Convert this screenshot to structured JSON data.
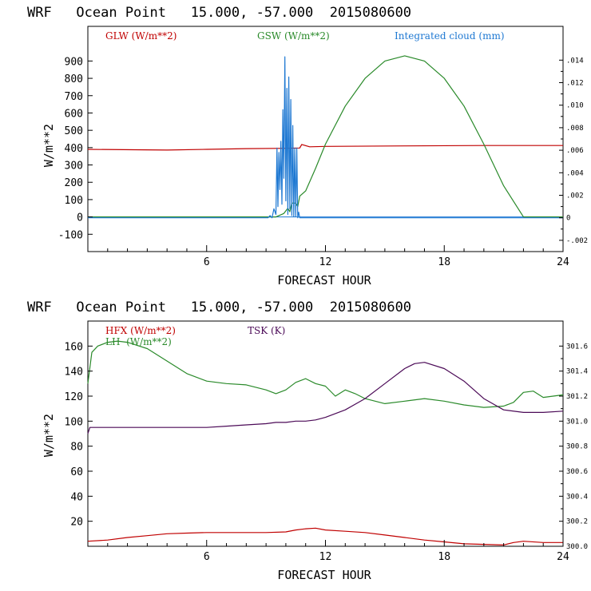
{
  "chart_data": [
    {
      "type": "line",
      "title": "WRF   Ocean Point   15.000, -57.000  2015080600",
      "xlabel": "FORECAST HOUR",
      "ylabel": "W/m**2",
      "xlim": [
        0,
        24
      ],
      "ylim": [
        -200,
        1100
      ],
      "xticks": [
        "6",
        "12",
        "18",
        "24"
      ],
      "yticks": [
        "-100",
        "0",
        "100",
        "200",
        "300",
        "400",
        "500",
        "600",
        "700",
        "800",
        "900"
      ],
      "right_ticks": [
        "-.002",
        "0",
        ".002",
        ".004",
        ".006",
        ".008",
        ".010",
        ".012",
        ".014"
      ],
      "right_ylim": [
        -0.003,
        0.017
      ],
      "legend": [
        "GLW (W/m**2)",
        "GSW (W/m**2)",
        "Integrated cloud (mm)"
      ],
      "series": [
        {
          "name": "GLW (W/m**2)",
          "color": "#c00000",
          "axis": "left",
          "x": [
            0,
            4,
            6,
            8,
            10,
            10.7,
            10.8,
            11.2,
            12,
            16,
            20,
            24
          ],
          "y": [
            390,
            386,
            390,
            394,
            396,
            398,
            418,
            405,
            407,
            410,
            412,
            412
          ]
        },
        {
          "name": "GSW (W/m**2)",
          "color": "#2a8a2a",
          "axis": "left",
          "x": [
            0,
            9.5,
            9.9,
            10.1,
            10.2,
            10.3,
            10.5,
            10.6,
            10.7,
            11,
            11.5,
            12,
            13,
            14,
            15,
            16,
            17,
            18,
            19,
            20,
            21,
            22,
            24
          ],
          "y": [
            0,
            0,
            20,
            50,
            30,
            80,
            80,
            60,
            120,
            150,
            280,
            420,
            640,
            800,
            900,
            930,
            900,
            800,
            640,
            420,
            180,
            0,
            0
          ]
        },
        {
          "name": "Integrated cloud (mm)",
          "color": "#1e78d2",
          "axis": "right",
          "x": [
            0,
            9.1,
            9.2,
            9.3,
            9.4,
            9.5,
            9.55,
            9.6,
            9.65,
            9.7,
            9.75,
            9.8,
            9.85,
            9.9,
            9.95,
            10.0,
            10.05,
            10.1,
            10.15,
            10.2,
            10.25,
            10.3,
            10.35,
            10.4,
            10.45,
            10.5,
            10.55,
            10.6,
            10.65,
            10.7,
            24
          ],
          "y": [
            0,
            0,
            0.0002,
            0,
            0.0008,
            0.0003,
            0.0062,
            0.001,
            0.0058,
            0.0025,
            0.0068,
            0.0012,
            0.0096,
            0.0035,
            0.0143,
            0.0015,
            0.0115,
            0.0003,
            0.0125,
            0.0008,
            0.0105,
            0.0002,
            0.0082,
            0.0001,
            0.0062,
            0.0001,
            0.0062,
            0,
            0.0005,
            0,
            0
          ]
        }
      ]
    },
    {
      "type": "line",
      "title": "WRF   Ocean Point   15.000, -57.000  2015080600",
      "xlabel": "FORECAST HOUR",
      "ylabel": "W/m**2",
      "xlim": [
        0,
        24
      ],
      "ylim": [
        0,
        180
      ],
      "xticks": [
        "6",
        "12",
        "18",
        "24"
      ],
      "yticks": [
        "20",
        "40",
        "60",
        "80",
        "100",
        "120",
        "140",
        "160"
      ],
      "right_ticks": [
        "300.0",
        "300.2",
        "300.4",
        "300.6",
        "300.8",
        "301.0",
        "301.2",
        "301.4",
        "301.6"
      ],
      "right_ylim": [
        300.0,
        301.8
      ],
      "legend": [
        "HFX (W/m**2)",
        "LH  (W/m**2)",
        "TSK (K)"
      ],
      "series": [
        {
          "name": "HFX (W/m**2)",
          "color": "#c00000",
          "axis": "left",
          "x": [
            0,
            1,
            2,
            3,
            4,
            5,
            6,
            7,
            8,
            9,
            10,
            10.5,
            11,
            11.5,
            12,
            13,
            14,
            15,
            16,
            17,
            18,
            19,
            20,
            21,
            21.5,
            22,
            23,
            24
          ],
          "y": [
            4,
            5,
            7,
            8.5,
            10,
            10.5,
            11,
            11,
            11,
            11,
            11.5,
            13,
            14,
            14.5,
            13,
            12,
            11,
            9,
            7,
            5,
            3.5,
            2,
            1.5,
            1,
            3,
            4,
            3,
            3
          ]
        },
        {
          "name": "LH  (W/m**2)",
          "color": "#2a8a2a",
          "axis": "left",
          "x": [
            0,
            0.2,
            0.5,
            1,
            1.5,
            2,
            3,
            4,
            5,
            6,
            7,
            8,
            9,
            9.5,
            10,
            10.5,
            11,
            11.5,
            12,
            12.5,
            13,
            13.5,
            14,
            15,
            16,
            17,
            18,
            19,
            20,
            21,
            21.5,
            22,
            22.5,
            23,
            23.5,
            24
          ],
          "y": [
            130,
            155,
            160,
            163,
            164,
            163,
            158,
            148,
            138,
            132,
            130,
            129,
            125,
            122,
            125,
            131,
            134,
            130,
            128,
            120,
            125,
            122,
            118,
            114,
            116,
            118,
            116,
            113,
            111,
            112,
            115,
            123,
            124,
            119,
            120,
            121
          ]
        },
        {
          "name": "TSK (K)",
          "color": "#4b0a57",
          "axis": "right",
          "x": [
            0,
            0.1,
            1,
            2,
            3,
            4,
            5,
            6,
            7,
            8,
            9,
            9.5,
            10,
            10.5,
            11,
            11.5,
            12,
            13,
            14,
            15,
            16,
            16.5,
            17,
            18,
            19,
            20,
            21,
            22,
            23,
            24
          ],
          "y": [
            300.9,
            300.95,
            300.95,
            300.95,
            300.95,
            300.95,
            300.95,
            300.95,
            300.96,
            300.97,
            300.98,
            300.99,
            300.99,
            301.0,
            301.0,
            301.01,
            301.03,
            301.09,
            301.18,
            301.3,
            301.42,
            301.46,
            301.47,
            301.42,
            301.32,
            301.18,
            301.09,
            301.07,
            301.07,
            301.08
          ]
        }
      ]
    }
  ]
}
